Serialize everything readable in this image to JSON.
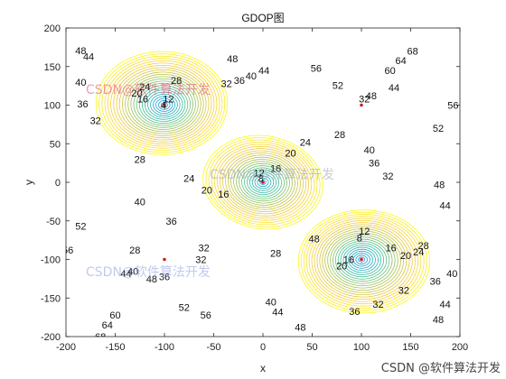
{
  "chart_data": {
    "type": "contour",
    "title": "GDOP图",
    "xlabel": "x",
    "ylabel": "y",
    "xlim": [
      -200,
      200
    ],
    "ylim": [
      -200,
      200
    ],
    "xticks": [
      -200,
      -150,
      -100,
      -50,
      0,
      50,
      100,
      150,
      200
    ],
    "yticks": [
      -200,
      -150,
      -100,
      -50,
      0,
      50,
      100,
      150,
      200
    ],
    "grid": false,
    "colormap": "parula",
    "stations": [
      {
        "x": -100,
        "y": 100,
        "label": "4"
      },
      {
        "x": 100,
        "y": 100,
        "label": ""
      },
      {
        "x": 0,
        "y": 0,
        "label": "8"
      },
      {
        "x": -100,
        "y": -100,
        "label": ""
      },
      {
        "x": 100,
        "y": -100,
        "label": "8"
      }
    ],
    "contour_labels": [
      {
        "text": "48",
        "x": -185,
        "y": 171
      },
      {
        "text": "44",
        "x": -177,
        "y": 163
      },
      {
        "text": "40",
        "x": -185,
        "y": 130
      },
      {
        "text": "36",
        "x": -183,
        "y": 102
      },
      {
        "text": "32",
        "x": -170,
        "y": 80
      },
      {
        "text": "28",
        "x": -88,
        "y": 132
      },
      {
        "text": "24",
        "x": -120,
        "y": 124
      },
      {
        "text": "20",
        "x": -128,
        "y": 116
      },
      {
        "text": "16",
        "x": -122,
        "y": 108
      },
      {
        "text": "12",
        "x": -96,
        "y": 108
      },
      {
        "text": "4",
        "x": -101,
        "y": 100
      },
      {
        "text": "32",
        "x": -37,
        "y": 128
      },
      {
        "text": "36",
        "x": -24,
        "y": 132
      },
      {
        "text": "40",
        "x": -12,
        "y": 138
      },
      {
        "text": "44",
        "x": 1,
        "y": 145
      },
      {
        "text": "48",
        "x": -31,
        "y": 160
      },
      {
        "text": "56",
        "x": 54,
        "y": 148
      },
      {
        "text": "52",
        "x": 76,
        "y": 126
      },
      {
        "text": "64",
        "x": 140,
        "y": 158
      },
      {
        "text": "60",
        "x": 129,
        "y": 145
      },
      {
        "text": "68",
        "x": 152,
        "y": 170
      },
      {
        "text": "44",
        "x": 133,
        "y": 123
      },
      {
        "text": "48",
        "x": 110,
        "y": 112
      },
      {
        "text": "28",
        "x": 78,
        "y": 62
      },
      {
        "text": "32",
        "x": 103,
        "y": 108
      },
      {
        "text": "56",
        "x": 193,
        "y": 100
      },
      {
        "text": "52",
        "x": 178,
        "y": 70
      },
      {
        "text": "20",
        "x": 28,
        "y": 38
      },
      {
        "text": "24",
        "x": 43,
        "y": 52
      },
      {
        "text": "28",
        "x": -125,
        "y": 30
      },
      {
        "text": "16",
        "x": 13,
        "y": 18
      },
      {
        "text": "12",
        "x": -4,
        "y": 12
      },
      {
        "text": "8",
        "x": -2,
        "y": 5
      },
      {
        "text": "24",
        "x": -75,
        "y": 5
      },
      {
        "text": "20",
        "x": -57,
        "y": -10
      },
      {
        "text": "16",
        "x": -40,
        "y": -15
      },
      {
        "text": "40",
        "x": 108,
        "y": 42
      },
      {
        "text": "36",
        "x": 113,
        "y": 25
      },
      {
        "text": "32",
        "x": 127,
        "y": 8
      },
      {
        "text": "48",
        "x": 179,
        "y": -3
      },
      {
        "text": "44",
        "x": 185,
        "y": -30
      },
      {
        "text": "40",
        "x": -125,
        "y": -25
      },
      {
        "text": "36",
        "x": -93,
        "y": -50
      },
      {
        "text": "52",
        "x": -185,
        "y": -57
      },
      {
        "text": "56",
        "x": -198,
        "y": -88
      },
      {
        "text": "28",
        "x": -130,
        "y": -88
      },
      {
        "text": "44",
        "x": -139,
        "y": -118
      },
      {
        "text": "40",
        "x": -132,
        "y": -115
      },
      {
        "text": "48",
        "x": -113,
        "y": -125
      },
      {
        "text": "36",
        "x": -100,
        "y": -122
      },
      {
        "text": "32",
        "x": -60,
        "y": -85
      },
      {
        "text": "28",
        "x": 13,
        "y": -92
      },
      {
        "text": "12",
        "x": 103,
        "y": -63
      },
      {
        "text": "8",
        "x": 98,
        "y": -72
      },
      {
        "text": "16",
        "x": 130,
        "y": -85
      },
      {
        "text": "20",
        "x": 145,
        "y": -95
      },
      {
        "text": "24",
        "x": 158,
        "y": -90
      },
      {
        "text": "28",
        "x": 163,
        "y": -82
      },
      {
        "text": "40",
        "x": 192,
        "y": -118
      },
      {
        "text": "36",
        "x": 175,
        "y": -128
      },
      {
        "text": "32",
        "x": 143,
        "y": -140
      },
      {
        "text": "20",
        "x": 80,
        "y": -108
      },
      {
        "text": "16",
        "x": 87,
        "y": -100
      },
      {
        "text": "52",
        "x": -80,
        "y": -162
      },
      {
        "text": "56",
        "x": -58,
        "y": -172
      },
      {
        "text": "60",
        "x": -150,
        "y": -172
      },
      {
        "text": "64",
        "x": -158,
        "y": -185
      },
      {
        "text": "68",
        "x": -165,
        "y": -200
      },
      {
        "text": "40",
        "x": 8,
        "y": -155
      },
      {
        "text": "44",
        "x": 15,
        "y": -168
      },
      {
        "text": "48",
        "x": 38,
        "y": -188
      },
      {
        "text": "36",
        "x": 93,
        "y": -167
      },
      {
        "text": "32",
        "x": 117,
        "y": -158
      },
      {
        "text": "44",
        "x": 185,
        "y": -158
      },
      {
        "text": "48",
        "x": 178,
        "y": -178
      },
      {
        "text": "48",
        "x": 52,
        "y": -73
      },
      {
        "text": "32",
        "x": -63,
        "y": -100
      }
    ]
  },
  "watermarks": [
    {
      "text": "CSDN@软件算法开发"
    },
    {
      "text": "CSDN@软件算法开发"
    },
    {
      "text": "CSDN@软件算法开发"
    }
  ],
  "footer": {
    "text": "CSDN @软件算法开发"
  }
}
